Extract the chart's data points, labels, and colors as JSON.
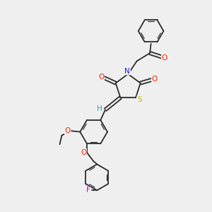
{
  "background_color": "#efefef",
  "bond_color": "#2c2c2c",
  "figsize": [
    3.0,
    3.0
  ],
  "dpi": 100,
  "atoms": {
    "N": {
      "color": "#1a1aff",
      "fontsize": 7.5
    },
    "O": {
      "color": "#ff2200",
      "fontsize": 7.5
    },
    "S": {
      "color": "#b8b800",
      "fontsize": 7.5
    },
    "F": {
      "color": "#cc00cc",
      "fontsize": 7.5
    },
    "H": {
      "color": "#2ca0a0",
      "fontsize": 7.5
    }
  }
}
